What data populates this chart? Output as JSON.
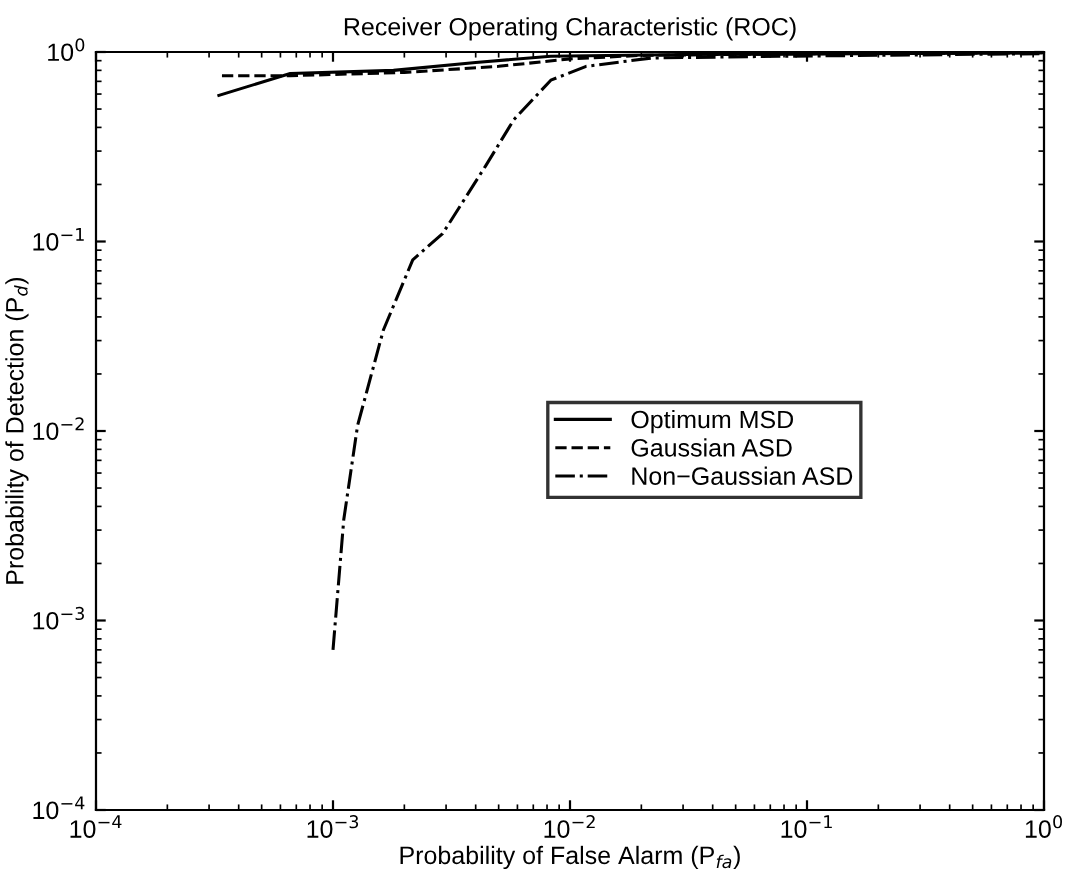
{
  "chart_data": {
    "type": "line",
    "title": "Receiver Operating Characteristic (ROC)",
    "xlabel": "Probability of False Alarm (P$_{fa}$)",
    "ylabel": "Probability of Detection (P$_{d}$)",
    "log": "xy",
    "xlim": [
      0.0001,
      1
    ],
    "ylim": [
      0.0001,
      1
    ],
    "xticks": [
      {
        "value": 0.0001,
        "label": "10$^{−4}$"
      },
      {
        "value": 0.001,
        "label": "10$^{−3}$"
      },
      {
        "value": 0.01,
        "label": "10$^{−2}$"
      },
      {
        "value": 0.1,
        "label": "10$^{−1}$"
      },
      {
        "value": 1,
        "label": "10$^{0}$"
      }
    ],
    "yticks": [
      {
        "value": 0.0001,
        "label": "10$^{−4}$"
      },
      {
        "value": 0.001,
        "label": "10$^{−3}$"
      },
      {
        "value": 0.01,
        "label": "10$^{−2}$"
      },
      {
        "value": 0.1,
        "label": "10$^{−1}$"
      },
      {
        "value": 1,
        "label": "10$^{0}$"
      }
    ],
    "grid": false,
    "legend": "center right",
    "series": [
      {
        "name": "Optimum MSD",
        "color": "#000000",
        "line_style": "solid",
        "x": [
          0.00033,
          0.00066,
          0.0018,
          0.004,
          0.0083,
          0.03,
          1
        ],
        "values": [
          0.59,
          0.77,
          0.8,
          0.88,
          0.95,
          0.97,
          0.99
        ]
      },
      {
        "name": "Gaussian ASD",
        "color": "#000000",
        "line_style": "dashed",
        "x": [
          0.00034,
          0.00066,
          0.002,
          0.005,
          0.01,
          0.02,
          0.1,
          1
        ],
        "values": [
          0.75,
          0.75,
          0.78,
          0.84,
          0.92,
          0.96,
          0.98,
          0.99
        ]
      },
      {
        "name": "Non−Gaussian ASD",
        "color": "#000000",
        "line_style": "dashdot",
        "x": [
          0.001,
          0.00111,
          0.00127,
          0.00163,
          0.00217,
          0.0029,
          0.0044,
          0.0058,
          0.0083,
          0.0117,
          0.0222,
          0.08,
          1
        ],
        "values": [
          0.0007,
          0.0034,
          0.0107,
          0.034,
          0.08,
          0.11,
          0.25,
          0.44,
          0.71,
          0.84,
          0.93,
          0.95,
          0.98
        ]
      }
    ]
  }
}
